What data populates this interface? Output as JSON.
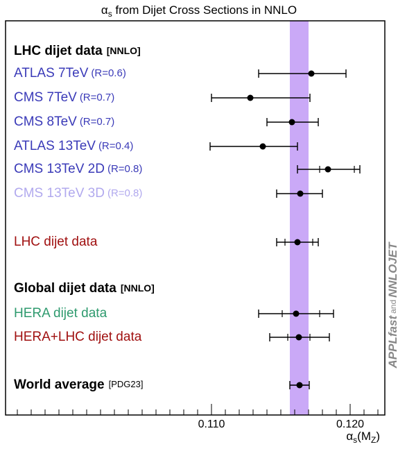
{
  "chart_data": {
    "type": "summary",
    "title": {
      "symbol": "α",
      "sub": "s",
      "rest": " from Dijet Cross Sections in NNLO"
    },
    "xlabel": {
      "symbol": "α",
      "sub": "s",
      "open": "(M",
      "sub2": "Z",
      "close": ")"
    },
    "side_label": {
      "a": "APPLfast",
      "b": "and",
      "c": "NNLOJET"
    },
    "xlim": [
      0.09515,
      0.1225
    ],
    "xticks": [
      {
        "value": 0.11,
        "label": "0.110"
      },
      {
        "value": 0.12,
        "label": "0.120"
      }
    ],
    "xminor_ticks": [
      0.096,
      0.097,
      0.098,
      0.099,
      0.1,
      0.101,
      0.102,
      0.103,
      0.104,
      0.105,
      0.106,
      0.107,
      0.108,
      0.109,
      0.111,
      0.112,
      0.113,
      0.114,
      0.115,
      0.116,
      0.117,
      0.118,
      0.119,
      0.121,
      0.122
    ],
    "band": [
      0.11565,
      0.117
    ],
    "band_color": "#caa9f7",
    "marker_color": "#000000",
    "headings": [
      {
        "text": "LHC dijet data",
        "tag": "[NNLO]"
      },
      {
        "text": "Global dijet data",
        "tag": "[NNLO]"
      }
    ],
    "rows": [
      {
        "label": "ATLAS 7TeV",
        "sublabel": "(R=0.6)",
        "color": "#3a3ab8",
        "value": 0.1172,
        "err_minus": 0.0038,
        "err_plus": 0.0025
      },
      {
        "label": "CMS 7TeV",
        "sublabel": "(R=0.7)",
        "color": "#3a3ab8",
        "value": 0.1128,
        "err_minus": 0.0028,
        "err_plus": 0.0043
      },
      {
        "label": "CMS 8TeV",
        "sublabel": "(R=0.7)",
        "color": "#3a3ab8",
        "value": 0.1158,
        "err_minus": 0.0018,
        "err_plus": 0.0019
      },
      {
        "label": "ATLAS 13TeV",
        "sublabel": "(R=0.4)",
        "color": "#3a3ab8",
        "value": 0.1137,
        "err_minus": 0.0038,
        "err_plus": 0.0025
      },
      {
        "label": "CMS 13TeV 2D",
        "sublabel": "(R=0.8)",
        "color": "#3a3ab8",
        "value": 0.1184,
        "err_minus": 0.0022,
        "err_plus": 0.0023,
        "inner_minus": 0.0006,
        "inner_plus": 0.0019
      },
      {
        "label": "CMS 13TeV 3D",
        "sublabel": "(R=0.8)",
        "color": "#b1a9ee",
        "value": 0.1164,
        "err_minus": 0.0017,
        "err_plus": 0.0016
      },
      {
        "label": "LHC dijet data",
        "color": "#a01010",
        "value": 0.1162,
        "err_minus": 0.0015,
        "err_plus": 0.0015,
        "inner_minus": 0.0009,
        "inner_plus": 0.0011
      },
      {
        "label": "HERA dijet data",
        "color": "#2e9a6e",
        "value": 0.1161,
        "err_minus": 0.0027,
        "err_plus": 0.0027,
        "inner_minus": 0.001,
        "inner_plus": 0.0017
      },
      {
        "label": "HERA+LHC dijet data",
        "color": "#a01010",
        "value": 0.1163,
        "err_minus": 0.0021,
        "err_plus": 0.0022,
        "inner_minus": 0.0008,
        "inner_plus": 0.0008
      }
    ],
    "world_average": {
      "label": "World average",
      "tag": "[PDG23]",
      "value": 0.11635,
      "err_minus": 0.0007,
      "err_plus": 0.0007
    }
  }
}
